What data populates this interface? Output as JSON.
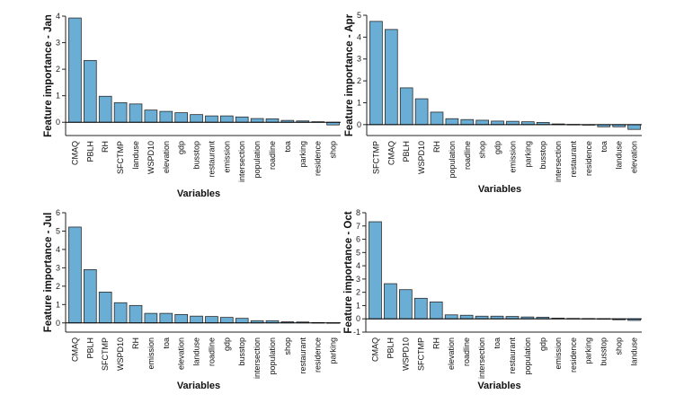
{
  "bar_color": "#6aaed6",
  "edge_color": "#2b2b2b",
  "chart_data": [
    {
      "type": "bar",
      "ylabel": "Feature importance - Jan",
      "xlabel": "Variables",
      "ylim": [
        -0.5,
        4
      ],
      "yticks": [
        0,
        1,
        2,
        3,
        4
      ],
      "categories": [
        "CMAQ",
        "PBLH",
        "RH",
        "SFCTMP",
        "landuse",
        "WSPD10",
        "elevation",
        "gdp",
        "busstop",
        "restaurant",
        "emission",
        "intersection",
        "population",
        "roadline",
        "toa",
        "parking",
        "residence",
        "shop"
      ],
      "values": [
        3.93,
        2.33,
        0.98,
        0.74,
        0.69,
        0.46,
        0.41,
        0.36,
        0.29,
        0.24,
        0.24,
        0.2,
        0.14,
        0.13,
        0.07,
        0.05,
        0.02,
        -0.1
      ]
    },
    {
      "type": "bar",
      "ylabel": "Feature importance - Apr",
      "xlabel": "Variables",
      "ylim": [
        -0.5,
        5
      ],
      "yticks": [
        0,
        1,
        2,
        3,
        4,
        5
      ],
      "categories": [
        "SFCTMP",
        "CMAQ",
        "PBLH",
        "WSPD10",
        "RH",
        "population",
        "roadline",
        "shop",
        "gdp",
        "emission",
        "parking",
        "busstop",
        "intersection",
        "restaurant",
        "residence",
        "toa",
        "landuse",
        "elevation"
      ],
      "values": [
        4.72,
        4.35,
        1.68,
        1.18,
        0.57,
        0.27,
        0.23,
        0.2,
        0.16,
        0.15,
        0.13,
        0.1,
        0.03,
        0.01,
        0.0,
        -0.1,
        -0.1,
        -0.22
      ]
    },
    {
      "type": "bar",
      "ylabel": "Feature importance - Jul",
      "xlabel": "Variables",
      "ylim": [
        -0.5,
        6
      ],
      "yticks": [
        0,
        1,
        2,
        3,
        4,
        5,
        6
      ],
      "categories": [
        "CMAQ",
        "PBLH",
        "SFCTMP",
        "WSPD10",
        "RH",
        "emission",
        "toa",
        "elevation",
        "landuse",
        "roadline",
        "gdp",
        "busstop",
        "intersection",
        "population",
        "shop",
        "restaurant",
        "residence",
        "parking"
      ],
      "values": [
        5.22,
        2.9,
        1.68,
        1.1,
        0.95,
        0.52,
        0.52,
        0.46,
        0.37,
        0.35,
        0.3,
        0.25,
        0.12,
        0.12,
        0.06,
        0.05,
        0.02,
        0.01
      ]
    },
    {
      "type": "bar",
      "ylabel": "Feature importance - Oct",
      "xlabel": "Variables",
      "ylim": [
        -1,
        8
      ],
      "yticks": [
        -1,
        0,
        1,
        2,
        3,
        4,
        5,
        6,
        7,
        8
      ],
      "categories": [
        "CMAQ",
        "PBLH",
        "WSPD10",
        "SFCTMP",
        "RH",
        "elevation",
        "roadline",
        "intersection",
        "toa",
        "restaurant",
        "population",
        "gdp",
        "emission",
        "residence",
        "parking",
        "busstop",
        "shop",
        "landuse"
      ],
      "values": [
        7.32,
        2.65,
        2.2,
        1.55,
        1.27,
        0.3,
        0.27,
        0.2,
        0.2,
        0.18,
        0.14,
        0.12,
        0.05,
        0.03,
        0.02,
        0.01,
        -0.07,
        -0.12
      ]
    }
  ]
}
